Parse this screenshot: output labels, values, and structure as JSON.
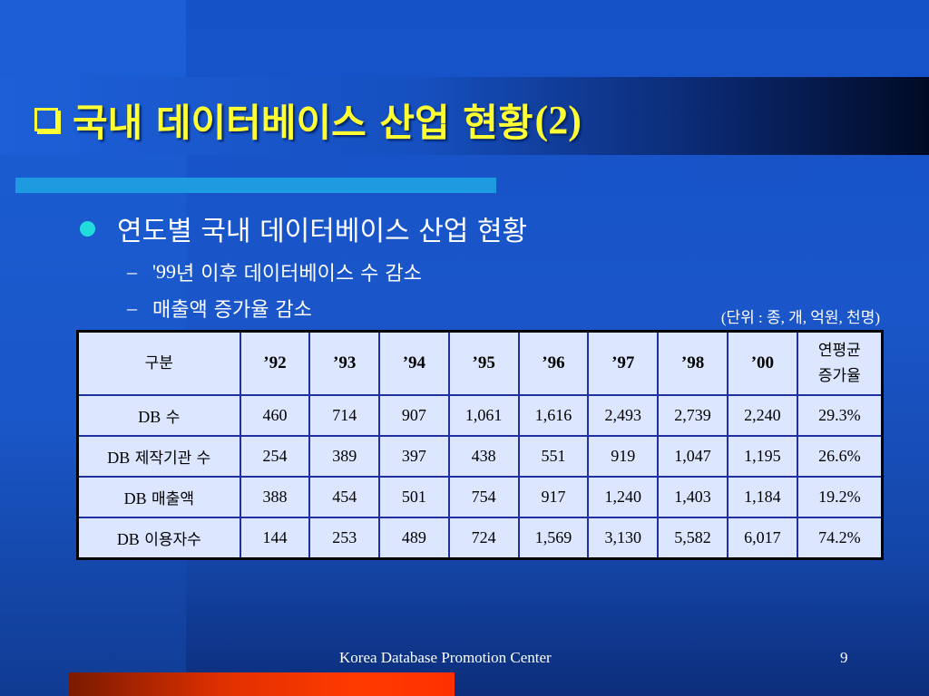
{
  "slide": {
    "title_korean": "국내 데이터베이스 산업 현황",
    "title_number": "(2)",
    "bullet": "연도별 국내 데이터베이스 산업 현황",
    "sub_items": [
      {
        "dash": "–",
        "year": "'99",
        "text": "년 이후 데이터베이스 수 감소"
      },
      {
        "dash": "–",
        "text": "매출액 증가율 감소"
      }
    ],
    "unit_note": "(단위 : 종, 개, 억원, 천명)",
    "footer": "Korea Database Promotion Center",
    "page_number": "9"
  },
  "table": {
    "header": {
      "category": "구분",
      "years": [
        "’92",
        "’93",
        "’94",
        "’95",
        "’96",
        "’97",
        "’98",
        "’00"
      ],
      "growth_line1": "연평균",
      "growth_line2": "증가율"
    },
    "rows": [
      {
        "prefix": "DB",
        "label": "수",
        "values": [
          "460",
          "714",
          "907",
          "1,061",
          "1,616",
          "2,493",
          "2,739",
          "2,240"
        ],
        "growth": "29.3%"
      },
      {
        "prefix": "DB",
        "label": "제작기관 수",
        "values": [
          "254",
          "389",
          "397",
          "438",
          "551",
          "919",
          "1,047",
          "1,195"
        ],
        "growth": "26.6%"
      },
      {
        "prefix": "DB",
        "label": "매출액",
        "values": [
          "388",
          "454",
          "501",
          "754",
          "917",
          "1,240",
          "1,403",
          "1,184"
        ],
        "growth": "19.2%"
      },
      {
        "prefix": "DB",
        "label": "이용자수",
        "values": [
          "144",
          "253",
          "489",
          "724",
          "1,569",
          "3,130",
          "5,582",
          "6,017"
        ],
        "growth": "74.2%"
      }
    ]
  },
  "colors": {
    "title": "#ffff33",
    "background": "#1a56c9",
    "accent_bar": "#1e9be0",
    "bullet_dot": "#22dcdc",
    "footer_bar": "#ff3a00",
    "table_fill": "#dde6ff"
  }
}
